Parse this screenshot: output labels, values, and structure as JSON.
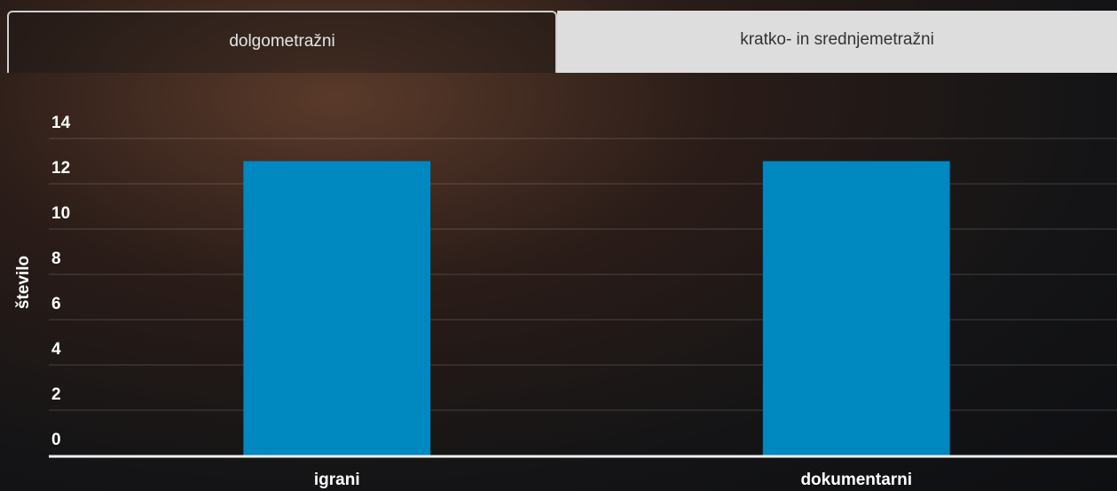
{
  "tabs": [
    "dolgometražni",
    "kratko- in srednjemetražni"
  ],
  "chart_data": {
    "type": "bar",
    "y_label": "število",
    "categories": [
      "igrani",
      "dokumentarni"
    ],
    "values": [
      13,
      13
    ],
    "color": "#0088c0",
    "ylim": [
      0,
      14
    ],
    "yticks": [
      0,
      2,
      4,
      6,
      8,
      10,
      12,
      14
    ],
    "grid": true
  }
}
